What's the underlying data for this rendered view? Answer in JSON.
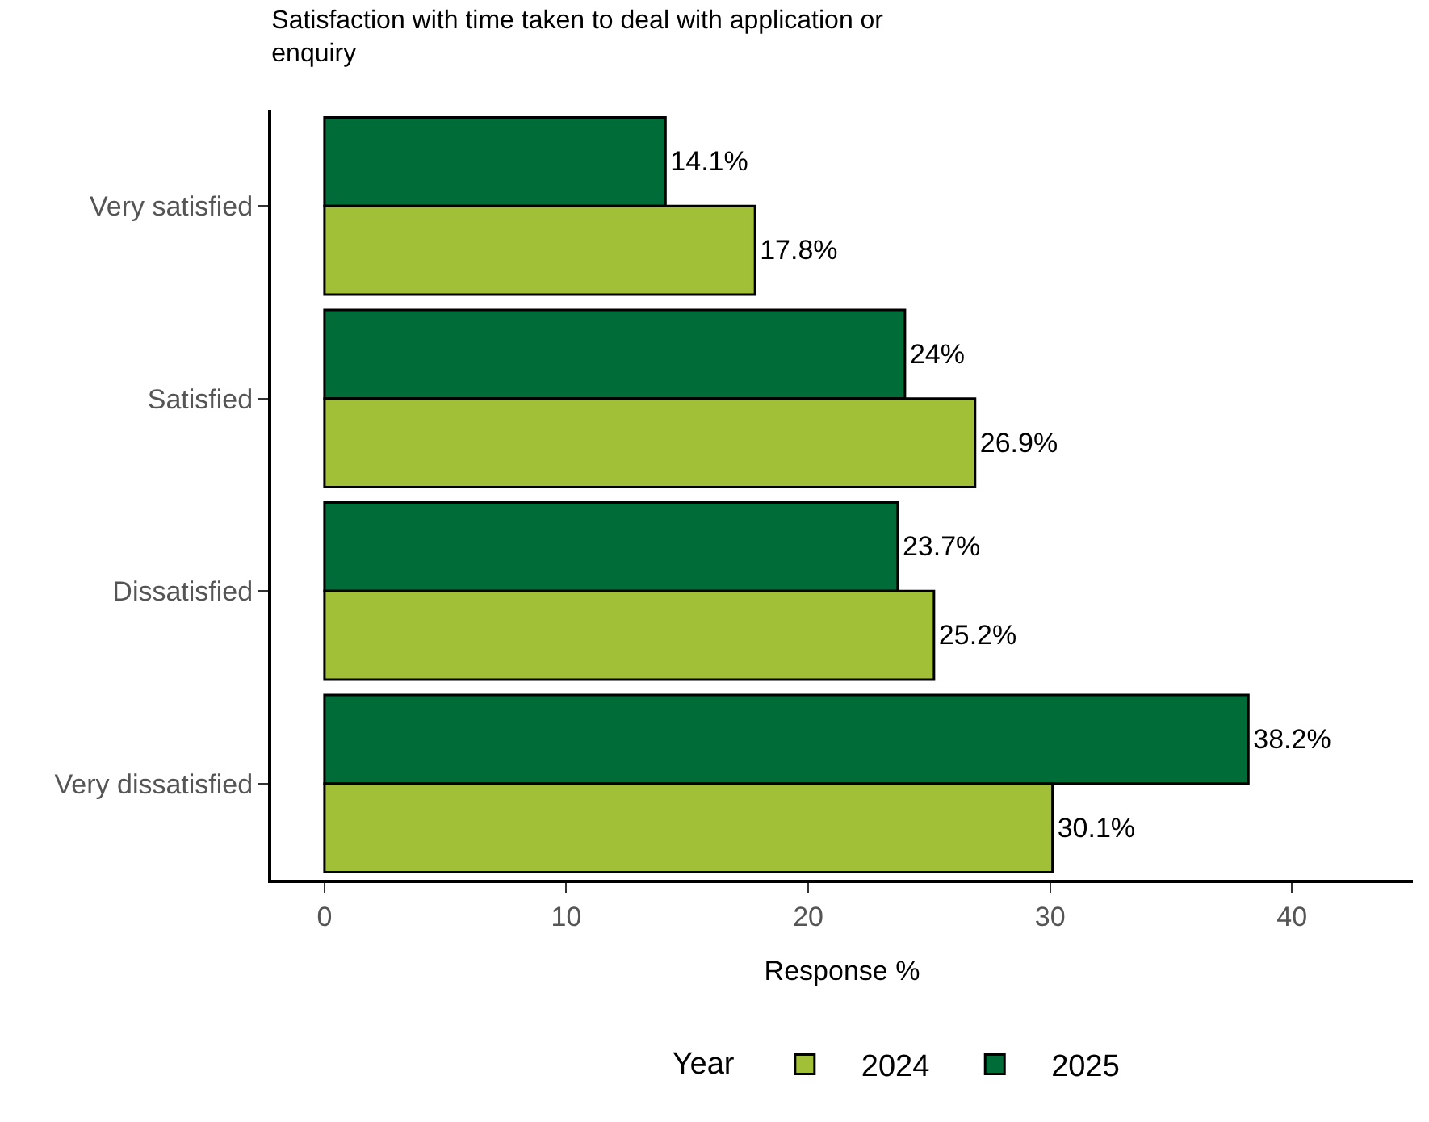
{
  "chart_data": {
    "type": "bar",
    "orientation": "horizontal",
    "title": "Satisfaction with time taken to deal with application or enquiry",
    "xlabel": "Response %",
    "legend_title": "Year",
    "categories": [
      "Very satisfied",
      "Satisfied",
      "Dissatisfied",
      "Very dissatisfied"
    ],
    "series": [
      {
        "name": "2025",
        "color": "#006d38",
        "values": [
          14.1,
          24,
          23.7,
          38.2
        ],
        "value_labels": [
          "14.1%",
          "24%",
          "23.7%",
          "38.2%"
        ]
      },
      {
        "name": "2024",
        "color": "#a2c037",
        "values": [
          17.8,
          26.9,
          25.2,
          30.1
        ],
        "value_labels": [
          "17.8%",
          "26.9%",
          "25.2%",
          "30.1%"
        ]
      }
    ],
    "xlim": [
      -2.2,
      45
    ],
    "xticks": [
      0,
      10,
      20,
      30,
      40
    ],
    "grid": false,
    "legend": "bottom"
  }
}
